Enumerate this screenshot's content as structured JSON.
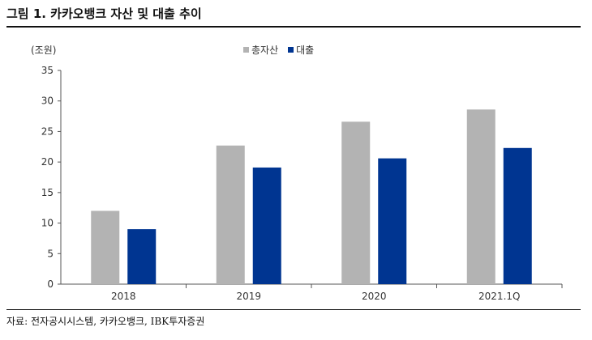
{
  "figure": {
    "title": "그림 1. 카카오뱅크 자산 및 대출 추이",
    "unit": "(조원)",
    "source": "자료: 전자공시시스템, 카카오뱅크, IBK투자증권"
  },
  "chart_data": {
    "type": "bar",
    "categories": [
      "2018",
      "2019",
      "2020",
      "2021.1Q"
    ],
    "series": [
      {
        "name": "총자산",
        "color": "#b3b3b3",
        "values": [
          12.0,
          22.7,
          26.6,
          28.6
        ]
      },
      {
        "name": "대출",
        "color": "#003591",
        "values": [
          9.0,
          19.1,
          20.6,
          22.3
        ]
      }
    ],
    "ylim": [
      0,
      35
    ],
    "yticks": [
      0,
      5,
      10,
      15,
      20,
      25,
      30,
      35
    ],
    "legend": "top-center",
    "grid": false
  }
}
